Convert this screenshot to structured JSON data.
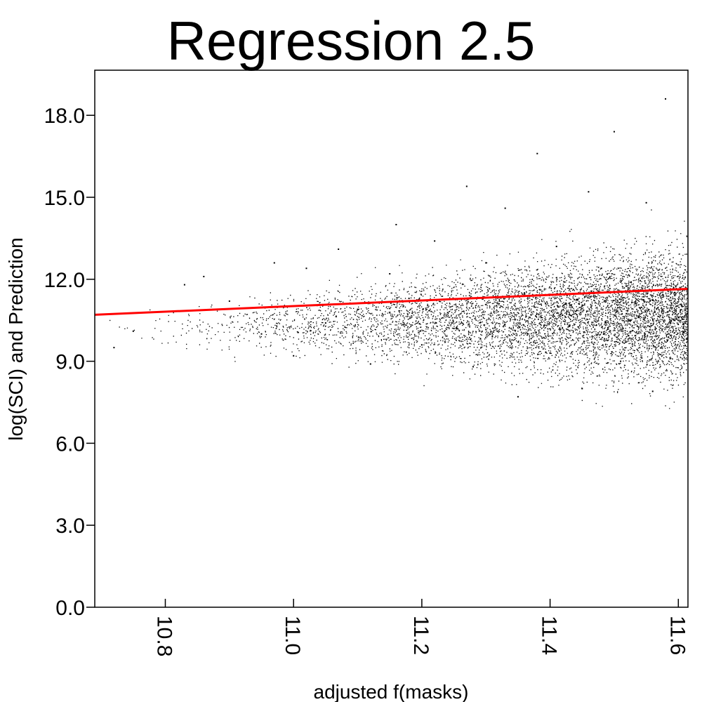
{
  "chart_data": {
    "type": "scatter",
    "title": "Regression 2.5",
    "xlabel": "adjusted f(masks)",
    "ylabel": "log(SCI) and Prediction",
    "xlim": [
      10.69,
      11.615
    ],
    "ylim": [
      0,
      19.65
    ],
    "x_ticks": [
      10.8,
      11.0,
      11.2,
      11.4,
      11.6
    ],
    "x_tick_labels": [
      "10.8",
      "11.0",
      "11.2",
      "11.4",
      "11.6"
    ],
    "y_ticks": [
      0,
      3,
      6,
      9,
      12,
      15,
      18
    ],
    "y_tick_labels": [
      "0.0",
      "3.0",
      "6.0",
      "9.0",
      "12.0",
      "15.0",
      "18.0"
    ],
    "grid": false,
    "series": [
      {
        "kind": "scatter",
        "color": "#000000",
        "points": [
          [
            10.72,
            9.5
          ],
          [
            10.75,
            10.1
          ],
          [
            10.83,
            11.8
          ],
          [
            10.86,
            12.1
          ],
          [
            10.9,
            11.2
          ],
          [
            10.95,
            10.0
          ],
          [
            10.97,
            12.6
          ],
          [
            11.0,
            9.2
          ],
          [
            11.02,
            12.4
          ],
          [
            11.05,
            10.4
          ],
          [
            11.07,
            13.1
          ],
          [
            11.1,
            10.9
          ],
          [
            11.12,
            8.9
          ],
          [
            11.15,
            12.2
          ],
          [
            11.16,
            14.0
          ],
          [
            11.18,
            11.3
          ],
          [
            11.2,
            9.6
          ],
          [
            11.22,
            13.4
          ],
          [
            11.25,
            10.2
          ],
          [
            11.27,
            15.4
          ],
          [
            11.28,
            8.8
          ],
          [
            11.3,
            12.6
          ],
          [
            11.31,
            9.9
          ],
          [
            11.33,
            14.6
          ],
          [
            11.35,
            7.7
          ],
          [
            11.36,
            11.5
          ],
          [
            11.38,
            16.6
          ],
          [
            11.4,
            9.3
          ],
          [
            11.41,
            13.2
          ],
          [
            11.43,
            10.7
          ],
          [
            11.45,
            8.0
          ],
          [
            11.46,
            15.2
          ],
          [
            11.48,
            12.4
          ],
          [
            11.5,
            17.4
          ],
          [
            11.51,
            9.0
          ],
          [
            11.53,
            11.6
          ],
          [
            11.55,
            14.8
          ],
          [
            11.56,
            7.9
          ],
          [
            11.58,
            18.6
          ],
          [
            11.6,
            10.6
          ]
        ]
      },
      {
        "kind": "prediction",
        "color": "#ff0000",
        "line": [
          [
            10.69,
            10.7
          ],
          [
            11.615,
            11.65
          ]
        ]
      }
    ]
  }
}
